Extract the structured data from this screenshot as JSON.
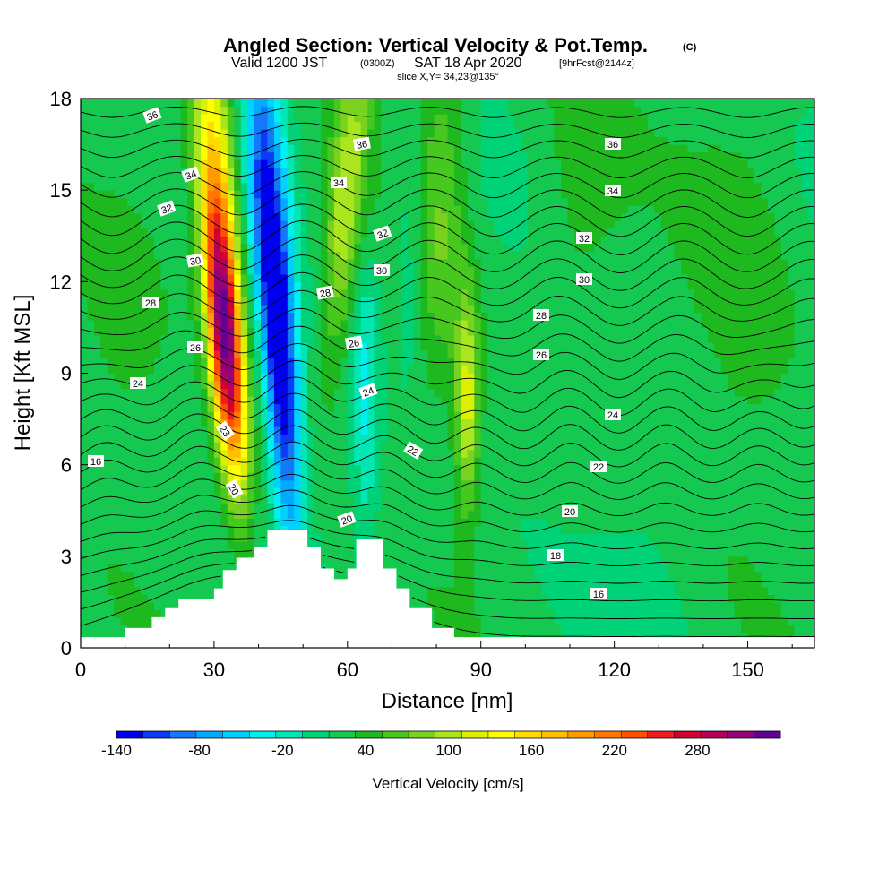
{
  "chart_data": {
    "type": "heatmap",
    "title": "Angled Section: Vertical Velocity & Pot.Temp.",
    "title_unit": "(C)",
    "subtitle": {
      "valid": "Valid 1200 JST",
      "utc": "(0300Z)",
      "date": "SAT 18 Apr 2020",
      "forecast": "[9hrFcst@2144z]"
    },
    "slice_label": "slice X,Y= 34,23@135°",
    "xlabel": "Distance [nm]",
    "ylabel": "Height [Kft MSL]",
    "xlim": [
      0,
      165
    ],
    "ylim": [
      0,
      18
    ],
    "x_ticks": [
      0,
      30,
      60,
      90,
      120,
      150
    ],
    "y_ticks": [
      0,
      3,
      6,
      9,
      12,
      15,
      18
    ],
    "colorbar": {
      "label": "Vertical Velocity [cm/s]",
      "tick_labels": [
        "-140",
        "-80",
        "-20",
        "40",
        "100",
        "160",
        "220",
        "280"
      ],
      "tick_values": [
        -140,
        -80,
        -20,
        40,
        100,
        160,
        220,
        280
      ],
      "range": [
        -140,
        340
      ],
      "colors": [
        "#0000f0",
        "#0a3cf5",
        "#1478f8",
        "#00aaff",
        "#00d2ff",
        "#00f0f0",
        "#00e6b4",
        "#00d278",
        "#14c850",
        "#1eb91e",
        "#46c81e",
        "#78d21e",
        "#aae61e",
        "#dcf000",
        "#ffff00",
        "#ffdc00",
        "#ffbe00",
        "#ff9b00",
        "#ff7800",
        "#ff5000",
        "#f01e1e",
        "#d20032",
        "#b4005a",
        "#960078",
        "#640096"
      ]
    },
    "series": [
      {
        "name": "Vertical Velocity",
        "type": "filled-contour",
        "units": "cm/s"
      },
      {
        "name": "Pot.Temp.",
        "type": "contour",
        "units": "C"
      }
    ],
    "isentrope_labels": [
      "36",
      "34",
      "32",
      "30",
      "28",
      "26",
      "24",
      "22",
      "20",
      "18",
      "16",
      "23"
    ],
    "features": {
      "updraft_core": {
        "x": 32,
        "y_range": [
          5,
          13
        ],
        "max": 300
      },
      "downdraft_core": {
        "x": 44,
        "y_range": [
          5,
          14
        ],
        "min": -140
      },
      "secondary_updraft": {
        "x": 63,
        "y_range": [
          12,
          18
        ],
        "max": 110
      },
      "terrain_peaks_nm": [
        46,
        67
      ]
    }
  }
}
